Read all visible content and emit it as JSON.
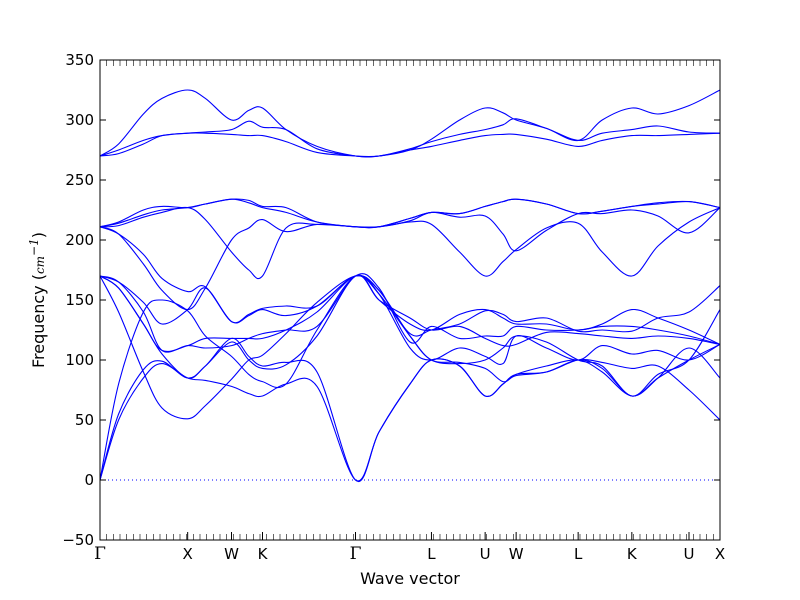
{
  "chart_data": {
    "type": "line",
    "title": "",
    "xlabel": "Wave vector",
    "ylabel": "Frequency (",
    "ylabel_unit": "cm",
    "ylabel_unit_exp": "−1",
    "ylabel_close": ")",
    "ylim": [
      -50,
      350
    ],
    "xlim": [
      0,
      10
    ],
    "y_ticks": [
      -50,
      0,
      50,
      100,
      150,
      200,
      250,
      300,
      350
    ],
    "y_tick_labels": [
      "−50",
      "0",
      "50",
      "100",
      "150",
      "200",
      "250",
      "300",
      "350"
    ],
    "x_ticks": [
      {
        "label": "Γ",
        "x": 0.0
      },
      {
        "label": "X",
        "x": 1.414
      },
      {
        "label": "W",
        "x": 2.121
      },
      {
        "label": "K",
        "x": 2.621
      },
      {
        "label": "Γ",
        "x": 4.121
      },
      {
        "label": "L",
        "x": 5.346
      },
      {
        "label": "U",
        "x": 6.212
      },
      {
        "label": "W",
        "x": 6.712
      },
      {
        "label": "L",
        "x": 7.712
      },
      {
        "label": "K",
        "x": 8.578
      },
      {
        "label": "U",
        "x": 9.5
      },
      {
        "label": "X",
        "x": 10.0
      }
    ],
    "zero_line": true,
    "line_color": "#0000ff",
    "series": [
      {
        "x": [
          0,
          0.3,
          0.7,
          1.0,
          1.414,
          1.7,
          2.121,
          2.4,
          2.621,
          3.0,
          3.5,
          4.121,
          4.5,
          5.0,
          5.346,
          5.8,
          6.212,
          6.5,
          6.712,
          7.2,
          7.712,
          8.1,
          8.578,
          9.0,
          9.5,
          10.0
        ],
        "y": [
          0,
          55,
          92,
          99,
          85,
          95,
          118,
          103,
          95,
          98,
          90,
          0,
          40,
          80,
          100,
          95,
          70,
          80,
          88,
          95,
          100,
          90,
          70,
          85,
          110,
          85
        ]
      },
      {
        "x": [
          0,
          0.3,
          0.7,
          1.0,
          1.414,
          1.7,
          2.121,
          2.4,
          2.621,
          3.0,
          3.5,
          4.121,
          4.5,
          5.0,
          5.346,
          5.8,
          6.212,
          6.5,
          6.712,
          7.2,
          7.712,
          8.1,
          8.578,
          9.0,
          9.5,
          10.0
        ],
        "y": [
          0,
          50,
          85,
          97,
          85,
          83,
          78,
          72,
          70,
          80,
          78,
          0,
          40,
          80,
          100,
          95,
          70,
          80,
          88,
          90,
          100,
          98,
          93,
          95,
          75,
          50
        ]
      },
      {
        "x": [
          0,
          0.3,
          0.7,
          1.0,
          1.414,
          1.7,
          2.121,
          2.4,
          2.621,
          3.0,
          3.5,
          4.121,
          4.5,
          5.0,
          5.346,
          5.8,
          6.212,
          6.5,
          6.712,
          7.2,
          7.712,
          8.1,
          8.578,
          9.0,
          9.5,
          10.0
        ],
        "y": [
          0,
          80,
          140,
          150,
          141,
          120,
          103,
          88,
          82,
          80,
          125,
          170,
          150,
          135,
          125,
          128,
          118,
          112,
          113,
          123,
          122,
          120,
          118,
          120,
          118,
          113
        ]
      },
      {
        "x": [
          0,
          0.3,
          0.7,
          1.0,
          1.414,
          1.7,
          2.121,
          2.4,
          2.621,
          3.0,
          3.5,
          4.121,
          4.5,
          5.0,
          5.346,
          5.8,
          6.212,
          6.5,
          6.712,
          7.2,
          7.712,
          8.1,
          8.578,
          9.0,
          9.5,
          10.0
        ],
        "y": [
          170,
          160,
          130,
          108,
          112,
          118,
          118,
          118,
          118,
          125,
          140,
          170,
          155,
          110,
          100,
          110,
          103,
          97,
          120,
          110,
          100,
          112,
          105,
          108,
          100,
          113
        ]
      },
      {
        "x": [
          0,
          0.3,
          0.7,
          1.0,
          1.414,
          1.7,
          2.121,
          2.4,
          2.621,
          3.0,
          3.5,
          4.121,
          4.5,
          5.0,
          5.346,
          5.8,
          6.212,
          6.5,
          6.712,
          7.2,
          7.712,
          8.1,
          8.578,
          9.0,
          9.5,
          10.0
        ],
        "y": [
          170,
          165,
          140,
          108,
          112,
          110,
          112,
          118,
          122,
          125,
          128,
          170,
          160,
          115,
          128,
          118,
          120,
          120,
          128,
          125,
          125,
          128,
          128,
          125,
          120,
          113
        ]
      },
      {
        "x": [
          0,
          0.3,
          0.7,
          1.0,
          1.414,
          1.7,
          2.121,
          2.4,
          2.621,
          3.0,
          3.5,
          4.121,
          4.5,
          5.0,
          5.346,
          5.8,
          6.212,
          6.5,
          6.712,
          7.2,
          7.712,
          8.1,
          8.578,
          9.0,
          9.5,
          10.0
        ],
        "y": [
          170,
          160,
          130,
          105,
          85,
          95,
          115,
          100,
          93,
          96,
          120,
          170,
          150,
          130,
          125,
          138,
          142,
          135,
          130,
          130,
          125,
          130,
          142,
          135,
          125,
          113
        ]
      },
      {
        "x": [
          0,
          0.3,
          0.7,
          1.0,
          1.414,
          1.7,
          2.121,
          2.4,
          2.621,
          3.0,
          3.5,
          4.121,
          4.5,
          5.0,
          5.346,
          5.8,
          6.212,
          6.5,
          6.712,
          7.2,
          7.712,
          8.1,
          8.578,
          9.0,
          9.5,
          10.0
        ],
        "y": [
          170,
          140,
          90,
          60,
          51,
          62,
          84,
          100,
          104,
          122,
          148,
          170,
          158,
          120,
          100,
          98,
          93,
          82,
          87,
          90,
          100,
          93,
          70,
          85,
          100,
          113
        ]
      },
      {
        "x": [
          0,
          0.3,
          0.7,
          1.0,
          1.414,
          1.7,
          2.121,
          2.4,
          2.621,
          3.0,
          3.5,
          4.121,
          4.5,
          5.0,
          5.346,
          5.8,
          6.212,
          6.5,
          6.712,
          7.2,
          7.712,
          8.1,
          8.578,
          9.0,
          9.5,
          10.0
        ],
        "y": [
          170,
          165,
          148,
          130,
          142,
          160,
          132,
          138,
          143,
          145,
          145,
          170,
          155,
          120,
          100,
          97,
          100,
          110,
          120,
          115,
          100,
          95,
          70,
          88,
          100,
          142
        ]
      },
      {
        "x": [
          0,
          0.3,
          0.7,
          1.0,
          1.414,
          1.7,
          2.121,
          2.4,
          2.621,
          3.0,
          3.5,
          4.121,
          4.5,
          5.0,
          5.346,
          5.8,
          6.212,
          6.5,
          6.712,
          7.2,
          7.712,
          8.1,
          8.578,
          9.0,
          9.5,
          10.0
        ],
        "y": [
          211,
          205,
          188,
          168,
          157,
          161,
          132,
          137,
          142,
          137,
          145,
          170,
          158,
          122,
          125,
          130,
          141,
          138,
          132,
          135,
          124,
          125,
          124,
          135,
          140,
          162
        ]
      },
      {
        "x": [
          0,
          0.3,
          0.7,
          1.0,
          1.414,
          1.7,
          2.121,
          2.4,
          2.621,
          3.0,
          3.5,
          4.121,
          4.5,
          5.0,
          5.346,
          5.8,
          6.212,
          6.5,
          6.712,
          7.2,
          7.712,
          8.1,
          8.578,
          9.0,
          9.5,
          10.0
        ],
        "y": [
          211,
          214,
          221,
          225,
          227,
          230,
          234,
          231,
          227,
          223,
          215,
          211,
          211,
          218,
          223,
          222,
          228,
          232,
          234,
          230,
          222,
          224,
          228,
          230,
          232,
          227
        ]
      },
      {
        "x": [
          0,
          0.3,
          0.7,
          1.0,
          1.414,
          1.7,
          2.121,
          2.4,
          2.621,
          3.0,
          3.5,
          4.121,
          4.5,
          5.0,
          5.346,
          5.8,
          6.212,
          6.5,
          6.712,
          7.2,
          7.712,
          8.1,
          8.578,
          9.0,
          9.5,
          10.0
        ],
        "y": [
          211,
          212,
          219,
          223,
          227,
          217,
          190,
          175,
          170,
          210,
          213,
          211,
          211,
          215,
          213,
          190,
          170,
          182,
          192,
          210,
          214,
          190,
          170,
          195,
          215,
          227
        ]
      },
      {
        "x": [
          0,
          0.3,
          0.7,
          1.0,
          1.414,
          1.7,
          2.121,
          2.4,
          2.621,
          3.0,
          3.5,
          4.121,
          4.5,
          5.0,
          5.346,
          5.8,
          6.212,
          6.5,
          6.712,
          7.2,
          7.712,
          8.1,
          8.578,
          9.0,
          9.5,
          10.0
        ],
        "y": [
          211,
          205,
          180,
          158,
          142,
          160,
          200,
          210,
          217,
          207,
          213,
          211,
          211,
          216,
          223,
          219,
          220,
          205,
          191,
          208,
          222,
          222,
          225,
          220,
          206,
          227
        ]
      },
      {
        "x": [
          0,
          0.3,
          0.7,
          1.0,
          1.414,
          1.7,
          2.121,
          2.4,
          2.621,
          3.0,
          3.5,
          4.121,
          4.5,
          5.0,
          5.346,
          5.8,
          6.212,
          6.5,
          6.712,
          7.2,
          7.712,
          8.1,
          8.578,
          9.0,
          9.5,
          10.0
        ],
        "y": [
          211,
          215,
          225,
          228,
          227,
          230,
          234,
          233,
          228,
          227,
          215,
          211,
          211,
          218,
          223,
          222,
          228,
          232,
          234,
          230,
          222,
          224,
          228,
          231,
          232,
          227
        ]
      },
      {
        "x": [
          0,
          0.3,
          0.7,
          1.0,
          1.414,
          1.7,
          2.121,
          2.4,
          2.621,
          3.0,
          3.5,
          4.121,
          4.5,
          5.0,
          5.346,
          5.8,
          6.212,
          6.5,
          6.712,
          7.2,
          7.712,
          8.1,
          8.578,
          9.0,
          9.5,
          10.0
        ],
        "y": [
          270,
          280,
          305,
          318,
          325,
          318,
          300,
          308,
          310,
          292,
          278,
          270,
          270,
          275,
          284,
          300,
          310,
          306,
          300,
          293,
          283,
          300,
          310,
          305,
          312,
          325
        ]
      },
      {
        "x": [
          0,
          0.3,
          0.7,
          1.0,
          1.414,
          1.7,
          2.121,
          2.4,
          2.621,
          3.0,
          3.5,
          4.121,
          4.5,
          5.0,
          5.346,
          5.8,
          6.212,
          6.5,
          6.712,
          7.2,
          7.712,
          8.1,
          8.578,
          9.0,
          9.5,
          10.0
        ],
        "y": [
          270,
          272,
          280,
          287,
          289,
          290,
          292,
          299,
          294,
          292,
          276,
          270,
          270,
          276,
          282,
          288,
          292,
          296,
          301,
          293,
          283,
          289,
          292,
          295,
          290,
          289
        ]
      },
      {
        "x": [
          0,
          0.3,
          0.7,
          1.0,
          1.414,
          1.7,
          2.121,
          2.4,
          2.621,
          3.0,
          3.5,
          4.121,
          4.5,
          5.0,
          5.346,
          5.8,
          6.212,
          6.5,
          6.712,
          7.2,
          7.712,
          8.1,
          8.578,
          9.0,
          9.5,
          10.0
        ],
        "y": [
          270,
          275,
          283,
          287,
          289,
          289,
          288,
          287,
          287,
          282,
          273,
          270,
          270,
          275,
          278,
          283,
          287,
          288,
          288,
          284,
          278,
          283,
          287,
          287,
          288,
          289
        ]
      }
    ]
  }
}
